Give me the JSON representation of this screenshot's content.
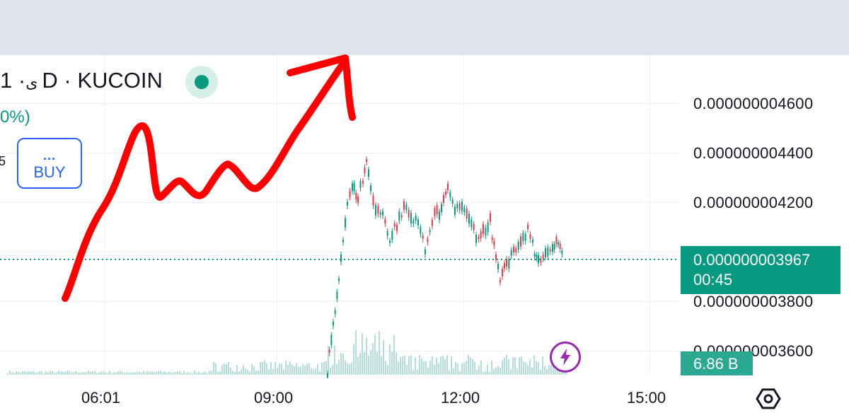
{
  "header": {
    "symbol_partial": "﻿· 1D · KUCOIN",
    "symbol_prefix": "ى",
    "change_partial": "0%)",
    "side_number": "5"
  },
  "buy_button": {
    "dots": "...",
    "label": "BUY"
  },
  "y_axis": {
    "ticks": [
      "0.000000004600",
      "0.000000004400",
      "0.000000004200",
      "0.000000003800",
      "0.000000003600"
    ]
  },
  "x_axis": {
    "ticks": [
      "06:01",
      "09:00",
      "12:00",
      "15:00"
    ]
  },
  "price_label": {
    "value": "0.000000003967",
    "countdown": "00:45"
  },
  "volume_label": {
    "value": "6.86 B"
  },
  "icons": {
    "flash": "lightning-icon",
    "settings": "hexagon-settings-icon",
    "status": "market-open-dot-icon"
  },
  "colors": {
    "up": "#089981",
    "down": "#f23645",
    "accent": "#2962ff",
    "annotation": "#ff0000"
  }
}
